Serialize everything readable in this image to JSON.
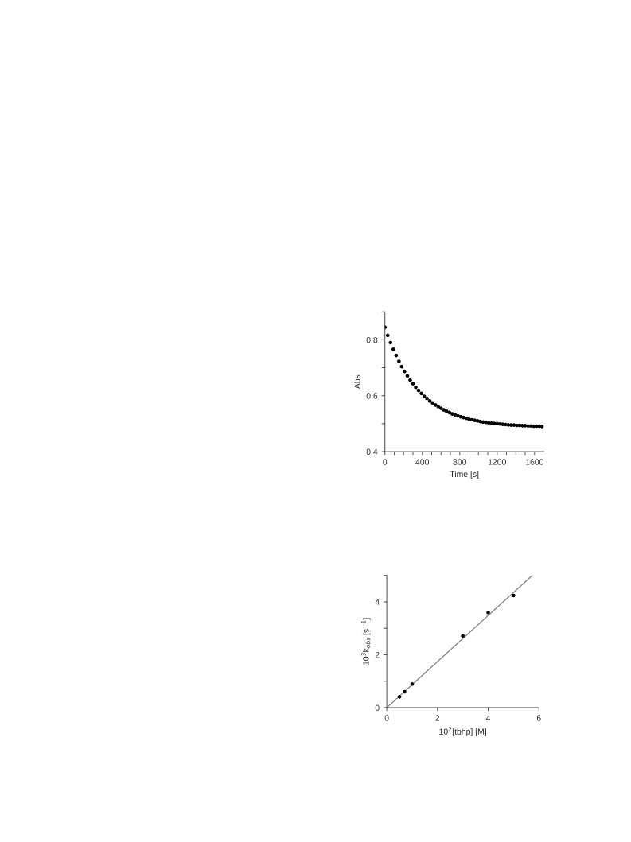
{
  "chart_data": [
    {
      "type": "scatter",
      "xlabel": "Time [s]",
      "ylabel": "Abs",
      "xlim": [
        0,
        1700
      ],
      "ylim": [
        0.4,
        0.9
      ],
      "xticks": [
        0,
        {
          "value": 100,
          "label": null
        },
        {
          "value": 200,
          "label": null
        },
        {
          "value": 300,
          "label": null
        },
        400,
        {
          "value": 500,
          "label": null
        },
        {
          "value": 600,
          "label": null
        },
        {
          "value": 700,
          "label": null
        },
        800,
        {
          "value": 900,
          "label": null
        },
        {
          "value": 1000,
          "label": null
        },
        {
          "value": 1100,
          "label": null
        },
        1200,
        {
          "value": 1300,
          "label": null
        },
        {
          "value": 1400,
          "label": null
        },
        {
          "value": 1500,
          "label": null
        },
        1600
      ],
      "yticks": [
        0.4,
        {
          "value": 0.5,
          "label": null
        },
        0.6,
        {
          "value": 0.7,
          "label": null
        },
        0.8,
        {
          "value": 0.9,
          "label": null
        }
      ],
      "marker": "circle",
      "grid": false,
      "series": [
        {
          "color": "#000000",
          "x": [
            0,
            30,
            60,
            90,
            120,
            150,
            180,
            210,
            240,
            270,
            300,
            330,
            360,
            390,
            420,
            450,
            480,
            510,
            540,
            570,
            600,
            630,
            660,
            690,
            720,
            750,
            780,
            810,
            840,
            870,
            900,
            930,
            960,
            990,
            1020,
            1050,
            1080,
            1110,
            1140,
            1170,
            1200,
            1230,
            1260,
            1290,
            1320,
            1350,
            1380,
            1410,
            1440,
            1470,
            1500,
            1530,
            1560,
            1590,
            1620,
            1650,
            1680
          ],
          "values": [
            0.845,
            0.816,
            0.79,
            0.766,
            0.744,
            0.723,
            0.704,
            0.687,
            0.671,
            0.656,
            0.643,
            0.63,
            0.619,
            0.608,
            0.598,
            0.59,
            0.581,
            0.574,
            0.567,
            0.561,
            0.555,
            0.549,
            0.544,
            0.54,
            0.535,
            0.532,
            0.528,
            0.525,
            0.522,
            0.519,
            0.516,
            0.514,
            0.512,
            0.51,
            0.508,
            0.506,
            0.505,
            0.503,
            0.502,
            0.501,
            0.5,
            0.499,
            0.498,
            0.497,
            0.496,
            0.495,
            0.495,
            0.494,
            0.494,
            0.493,
            0.493,
            0.492,
            0.492,
            0.491,
            0.491,
            0.491,
            0.49
          ]
        }
      ]
    },
    {
      "type": "scatter",
      "xlabel": "10$^{2}$[tbhp] [M]",
      "ylabel": "10$^{3}$k$_{obs}$ [s$^{−1}$]",
      "xlim": [
        0,
        6
      ],
      "ylim": [
        0,
        5
      ],
      "xticks": [
        0,
        2,
        4,
        6
      ],
      "yticks": [
        0,
        {
          "value": 1,
          "label": null
        },
        2,
        {
          "value": 3,
          "label": null
        },
        4,
        {
          "value": 5,
          "label": null
        }
      ],
      "marker": "circle",
      "grid": false,
      "series": [
        {
          "color": "#000000",
          "x": [
            0.5,
            0.7,
            1.0,
            3.0,
            4.0,
            5.0
          ],
          "values": [
            0.41,
            0.6,
            0.89,
            2.71,
            3.6,
            4.24
          ]
        },
        {
          "type": "line",
          "color": "#808080",
          "marker": "none",
          "x": [
            0,
            5.74
          ],
          "values": [
            0,
            5.0
          ]
        }
      ]
    }
  ]
}
